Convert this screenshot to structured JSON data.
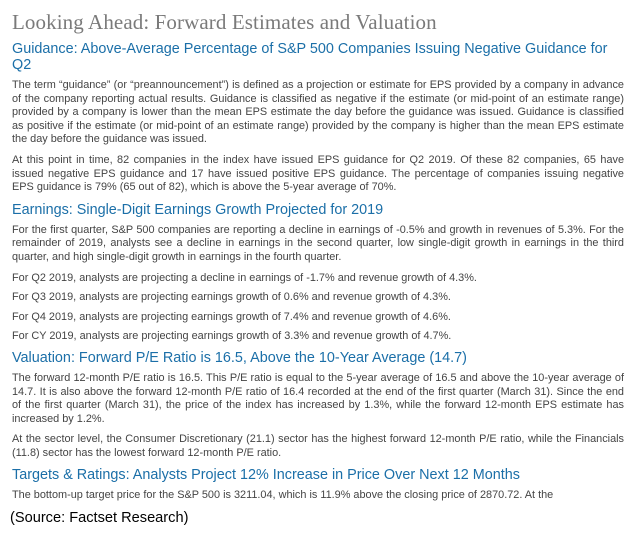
{
  "title": "Looking Ahead: Forward Estimates and Valuation",
  "sections": [
    {
      "heading": "Guidance: Above-Average Percentage of S&P 500 Companies Issuing Negative Guidance for Q2",
      "paragraphs": [
        "The term “guidance” (or “preannouncement”) is defined as a projection or estimate for EPS provided by a company in advance of the company reporting actual results. Guidance is classified as negative if the estimate (or mid-point of an estimate range) provided by a company is lower than the mean EPS estimate the day before the guidance was issued. Guidance is classified as positive if the estimate (or mid-point of an estimate range) provided by the company is higher than the mean EPS estimate the day before the guidance was issued.",
        "At this point in time, 82 companies in the index have issued EPS guidance for Q2 2019. Of these 82 companies, 65 have issued negative EPS guidance and 17 have issued positive EPS guidance. The percentage of companies issuing negative EPS guidance is 79% (65 out of 82), which is above the 5-year average of 70%."
      ]
    },
    {
      "heading": "Earnings: Single-Digit Earnings Growth Projected for 2019",
      "paragraphs": [
        "For the first quarter, S&P 500 companies are reporting a decline in earnings of -0.5% and growth in revenues of 5.3%. For the remainder of 2019, analysts see a decline in earnings in the second quarter, low single-digit growth in earnings in the third quarter, and high single-digit growth in earnings in the fourth quarter.",
        "For Q2 2019, analysts are projecting a decline in earnings of -1.7% and revenue growth of 4.3%.",
        "For Q3 2019, analysts are projecting earnings growth of 0.6% and revenue growth of 4.3%.",
        "For Q4 2019, analysts are projecting earnings growth of 7.4% and revenue growth of 4.6%.",
        "For CY 2019, analysts are projecting earnings growth of 3.3% and revenue growth of 4.7%."
      ]
    },
    {
      "heading": "Valuation: Forward P/E Ratio is 16.5, Above the 10-Year Average (14.7)",
      "paragraphs": [
        "The forward 12-month P/E ratio is 16.5. This P/E ratio is equal to the 5-year average of 16.5 and above the 10-year average of 14.7. It is also above the forward 12-month P/E ratio of 16.4 recorded at the end of the first quarter (March 31). Since the end of the first quarter (March 31), the price of the index has increased by 1.3%, while the forward 12-month EPS estimate has increased by 1.2%.",
        "At the sector level, the Consumer Discretionary (21.1) sector has the highest forward 12-month P/E ratio, while the Financials (11.8) sector has the lowest forward 12-month P/E ratio."
      ]
    },
    {
      "heading": "Targets & Ratings: Analysts Project 12% Increase in Price Over Next 12 Months",
      "paragraphs": [
        "The bottom-up target price for the S&P 500 is 3211.04, which is 11.9% above the closing price of 2870.72. At the"
      ]
    }
  ],
  "source": "(Source: Factset Research)"
}
